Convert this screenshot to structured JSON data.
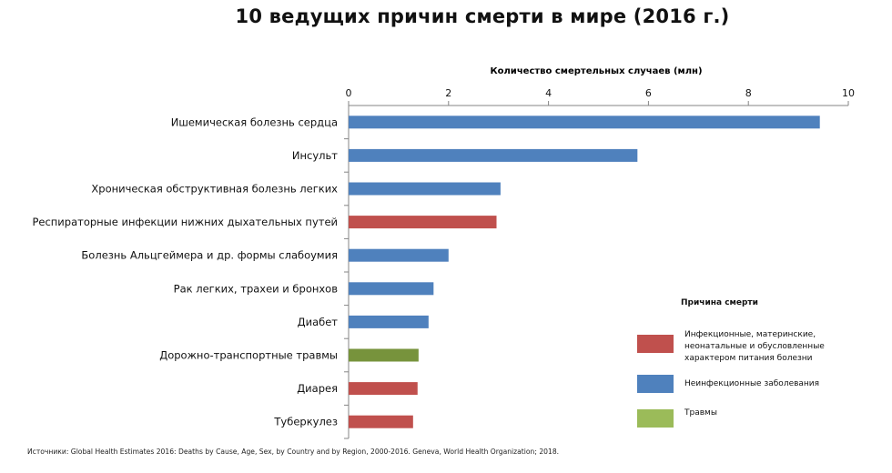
{
  "chart_data": {
    "type": "bar",
    "orientation": "horizontal",
    "title": "10 ведущих причин смерти в мире (2016 г.)",
    "xlabel": "Количество смертельных случаев (млн)",
    "xlim": [
      0,
      10
    ],
    "xticks": [
      "0",
      "2",
      "4",
      "6",
      "8",
      "10"
    ],
    "categories": [
      "Ишемическая болезнь сердца",
      "Инсульт",
      "Хроническая обструктивная болезнь легких",
      "Респираторные инфекции нижних дыхательных путей",
      "Болезнь Альцгеймера и др. формы слабоумия",
      "Рак легких, трахеи и бронхов",
      "Диабет",
      "Дорожно-транспортные травмы",
      "Диарея",
      "Туберкулез"
    ],
    "values": [
      9.43,
      5.78,
      3.04,
      2.96,
      2.0,
      1.7,
      1.6,
      1.4,
      1.38,
      1.29
    ],
    "groups": [
      "noncommunicable",
      "noncommunicable",
      "noncommunicable",
      "communicable",
      "noncommunicable",
      "noncommunicable",
      "noncommunicable",
      "injuries",
      "communicable",
      "communicable"
    ],
    "legend_position": "right"
  },
  "legend": {
    "title": "Причина смерти",
    "items": [
      {
        "key": "communicable",
        "label": "Инфекционные, материнские, неонатальные и обусловленные характером питания болезни",
        "color": "#C0504D"
      },
      {
        "key": "noncommunicable",
        "label": "Неинфекционные заболевания",
        "color": "#4F81BD"
      },
      {
        "key": "injuries",
        "label": "Травмы",
        "color": "#9BBB59"
      }
    ]
  },
  "colors": {
    "communicable": "#C0504D",
    "noncommunicable": "#4F81BD",
    "injuries": "#9BBB59",
    "injuries_bar": "#77933C",
    "axis": "#868686"
  },
  "source": "Источники: Global Health Estimates 2016: Deaths by Cause, Age, Sex, by Country and by Region, 2000-2016. Geneva, World Health Organization; 2018."
}
